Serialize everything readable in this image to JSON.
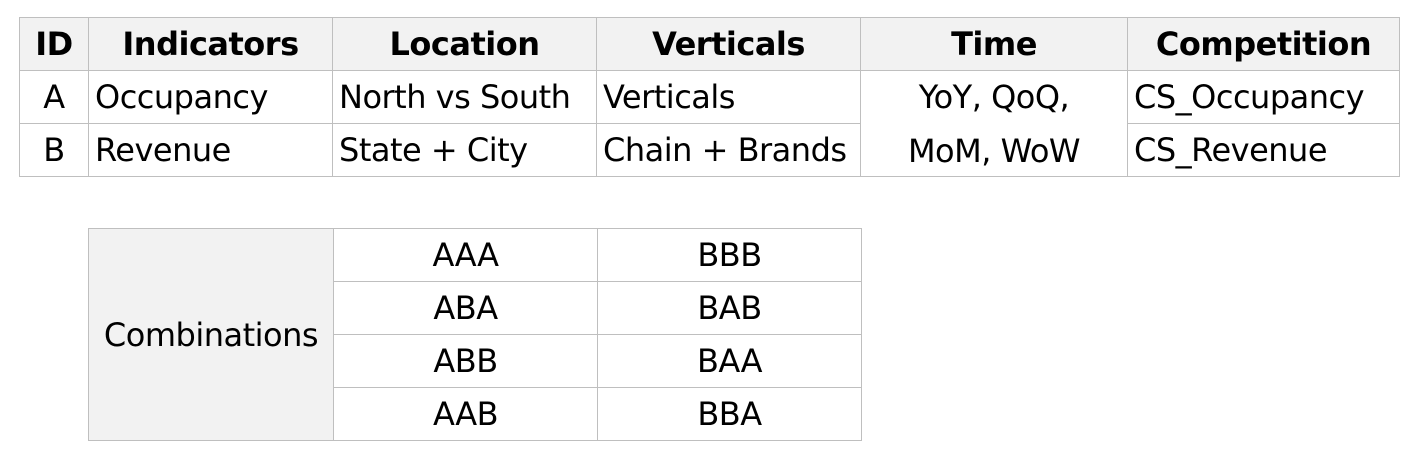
{
  "main_table": {
    "headers": [
      "ID",
      "Indicators",
      "Location",
      "Verticals",
      "Time",
      "Competition"
    ],
    "rows": [
      {
        "id": "A",
        "indicator": "Occupancy",
        "location": "North vs South",
        "vertical": "Verticals",
        "competition": "CS_Occupancy"
      },
      {
        "id": "B",
        "indicator": "Revenue",
        "location": "State + City",
        "vertical": "Chain + Brands",
        "competition": "CS_Revenue"
      }
    ],
    "time_line1": "YoY, QoQ,",
    "time_line2": "MoM, WoW"
  },
  "combinations": {
    "label": "Combinations",
    "rows": [
      [
        "AAA",
        "BBB"
      ],
      [
        "ABA",
        "BAB"
      ],
      [
        "ABB",
        "BAA"
      ],
      [
        "AAB",
        "BBA"
      ]
    ]
  }
}
